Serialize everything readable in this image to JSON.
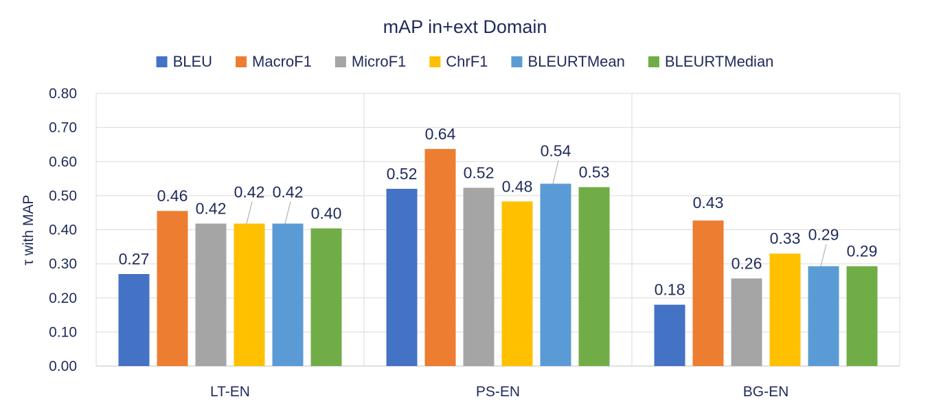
{
  "chart_data": {
    "type": "bar",
    "title": "mAP in+ext Domain",
    "ylabel": "τ with MAP",
    "xlabel": "",
    "ylim": [
      0,
      0.8
    ],
    "yticks": [
      "0.00",
      "0.10",
      "0.20",
      "0.30",
      "0.40",
      "0.50",
      "0.60",
      "0.70",
      "0.80"
    ],
    "grid": true,
    "legend_position": "top",
    "categories": [
      "LT-EN",
      "PS-EN",
      "BG-EN"
    ],
    "series": [
      {
        "name": "BLEU",
        "color": "#4472c4",
        "values": [
          0.27,
          0.52,
          0.18
        ],
        "labels": [
          "0.27",
          "0.52",
          "0.18"
        ]
      },
      {
        "name": "MacroF1",
        "color": "#ed7d31",
        "values": [
          0.455,
          0.637,
          0.427
        ],
        "labels": [
          "0.46",
          "0.64",
          "0.43"
        ]
      },
      {
        "name": "MicroF1",
        "color": "#a5a5a5",
        "values": [
          0.418,
          0.523,
          0.257
        ],
        "labels": [
          "0.42",
          "0.52",
          "0.26"
        ]
      },
      {
        "name": "ChrF1",
        "color": "#ffc000",
        "values": [
          0.418,
          0.483,
          0.33
        ],
        "labels": [
          "0.42",
          "0.48",
          "0.33"
        ]
      },
      {
        "name": "BLEURTMean",
        "color": "#5b9bd5",
        "values": [
          0.418,
          0.535,
          0.293
        ],
        "labels": [
          "0.42",
          "0.54",
          "0.29"
        ]
      },
      {
        "name": "BLEURTMedian",
        "color": "#70ad47",
        "values": [
          0.404,
          0.525,
          0.293
        ],
        "labels": [
          "0.40",
          "0.53",
          "0.29"
        ]
      }
    ]
  }
}
